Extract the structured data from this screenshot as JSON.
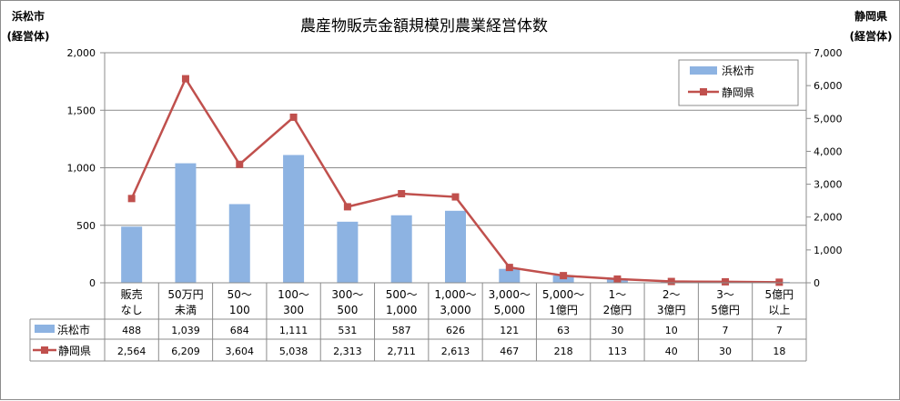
{
  "chart_data": {
    "type": "bar",
    "title": "農産物販売金額規模別農業経営体数",
    "y_left_label_line1": "浜松市",
    "y_left_label_line2": "(経営体)",
    "y_right_label_line1": "静岡県",
    "y_right_label_line2": "(経営体)",
    "ylim_left": [
      0,
      2000
    ],
    "ylim_right": [
      0,
      7000
    ],
    "yticks_left": [
      "0",
      "500",
      "1,000",
      "1,500",
      "2,000"
    ],
    "yticks_right": [
      "0",
      "1,000",
      "2,000",
      "3,000",
      "4,000",
      "5,000",
      "6,000",
      "7,000"
    ],
    "grid": true,
    "legend_position": "top-right",
    "categories": [
      [
        "販売",
        "なし"
      ],
      [
        "50万円",
        "未満"
      ],
      [
        "50～",
        "100"
      ],
      [
        "100～",
        "300"
      ],
      [
        "300～",
        "500"
      ],
      [
        "500～",
        "1,000"
      ],
      [
        "1,000～",
        "3,000"
      ],
      [
        "3,000～",
        "5,000"
      ],
      [
        "5,000～",
        "1億円"
      ],
      [
        "1～",
        "2億円"
      ],
      [
        "2～",
        "3億円"
      ],
      [
        "3～",
        "5億円"
      ],
      [
        "5億円",
        "以上"
      ]
    ],
    "series": [
      {
        "name": "浜松市",
        "kind": "bar",
        "axis": "left",
        "color": "#8db3e2",
        "values": [
          488,
          1039,
          684,
          1111,
          531,
          587,
          626,
          121,
          63,
          30,
          10,
          7,
          7
        ],
        "labels": [
          "488",
          "1,039",
          "684",
          "1,111",
          "531",
          "587",
          "626",
          "121",
          "63",
          "30",
          "10",
          "7",
          "7"
        ]
      },
      {
        "name": "静岡県",
        "kind": "line",
        "axis": "right",
        "color": "#c0504d",
        "values": [
          2564,
          6209,
          3604,
          5038,
          2313,
          2711,
          2613,
          467,
          218,
          113,
          40,
          30,
          18
        ],
        "labels": [
          "2,564",
          "6,209",
          "3,604",
          "5,038",
          "2,313",
          "2,711",
          "2,613",
          "467",
          "218",
          "113",
          "40",
          "30",
          "18"
        ]
      }
    ]
  }
}
